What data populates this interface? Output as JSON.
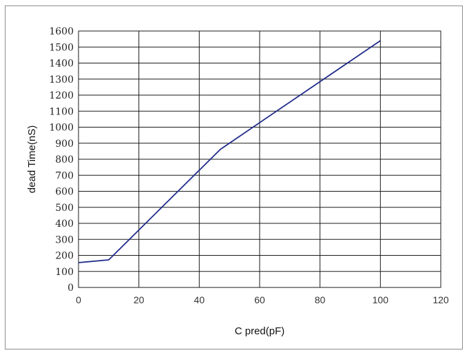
{
  "chart_data": {
    "type": "line",
    "title": "",
    "xlabel": "C pred(pF)",
    "ylabel": "dead Time(nS)",
    "xlim": [
      0,
      120
    ],
    "ylim": [
      0,
      1600
    ],
    "x_ticks": [
      "0",
      "20",
      "40",
      "60",
      "80",
      "100",
      "120"
    ],
    "y_ticks": [
      "0",
      "100",
      "200",
      "300",
      "400",
      "500",
      "600",
      "700",
      "800",
      "900",
      "1000",
      "1100",
      "1200",
      "1300",
      "1400",
      "1500",
      "1600"
    ],
    "grid": true,
    "legend": "none",
    "series": [
      {
        "color": "#1f2a8a",
        "points": [
          [
            0,
            155
          ],
          [
            10,
            172
          ],
          [
            47,
            862
          ],
          [
            100,
            1540
          ]
        ]
      }
    ]
  }
}
